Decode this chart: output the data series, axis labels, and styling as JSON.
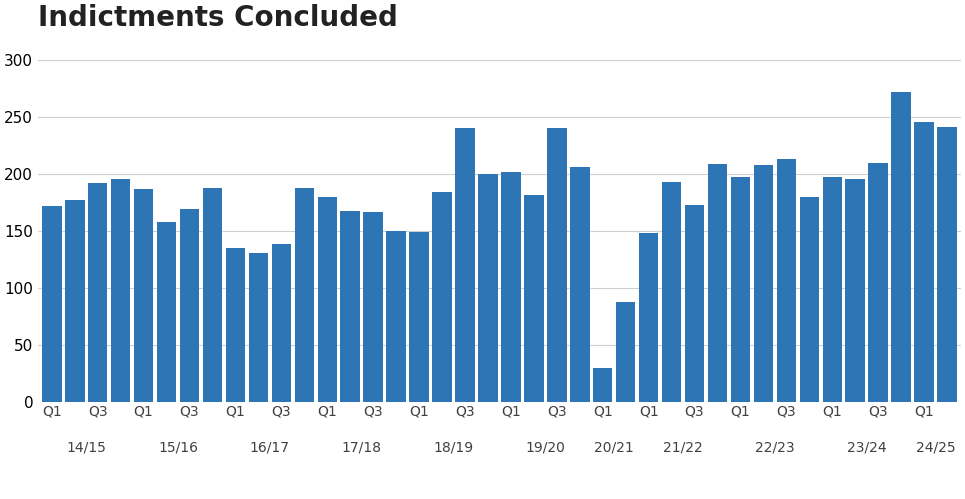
{
  "title": "Indictments Concluded",
  "title_fontsize": 20,
  "title_fontweight": "bold",
  "bar_color": "#2E75B6",
  "background_color": "#ffffff",
  "ylim": [
    0,
    320
  ],
  "yticks": [
    0,
    50,
    100,
    150,
    200,
    250,
    300
  ],
  "grid_color": "#d0d0d0",
  "values": [
    172,
    177,
    192,
    196,
    187,
    158,
    169,
    188,
    135,
    131,
    139,
    188,
    180,
    168,
    167,
    150,
    149,
    184,
    240,
    200,
    202,
    182,
    240,
    206,
    30,
    88,
    148,
    193,
    173,
    209,
    197,
    208,
    213,
    180,
    197,
    196,
    210,
    272,
    246,
    241
  ],
  "group_sizes": [
    4,
    4,
    4,
    4,
    4,
    4,
    2,
    4,
    4,
    4,
    2
  ],
  "year_labels": [
    "14/15",
    "15/16",
    "16/17",
    "17/18",
    "18/19",
    "19/20",
    "20/21",
    "21/22",
    "22/23",
    "23/24",
    "24/25"
  ],
  "q_label_pattern": [
    "Q1",
    "",
    "Q3",
    ""
  ]
}
